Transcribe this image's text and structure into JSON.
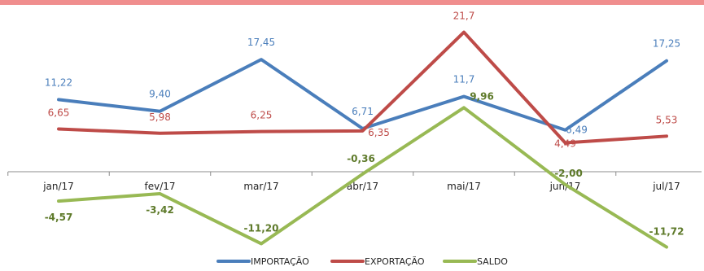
{
  "chart_data": {
    "type": "line",
    "categories": [
      "jan/17",
      "fev/17",
      "mar/17",
      "abr/17",
      "mai/17",
      "jun/17",
      "jul/17"
    ],
    "series": [
      {
        "name": "IMPORTAÇÃO",
        "color": "#4a7ebb",
        "values": [
          11.22,
          9.4,
          17.45,
          6.71,
          11.7,
          6.49,
          17.25
        ],
        "labels": [
          "11,22",
          "9,40",
          "17,45",
          "6,71",
          "11,7",
          "6,49",
          "17,25"
        ]
      },
      {
        "name": "EXPORTAÇÃO",
        "color": "#be4b48",
        "values": [
          6.65,
          5.98,
          6.25,
          6.35,
          21.7,
          4.49,
          5.53
        ],
        "labels": [
          "6,65",
          "5,98",
          "6,25",
          "6,35",
          "21,7",
          "4,49",
          "5,53"
        ]
      },
      {
        "name": "SALDO",
        "color": "#98b954",
        "label_color": "#5e7a2a",
        "values": [
          -4.57,
          -3.42,
          -11.2,
          -0.36,
          9.96,
          -2.0,
          -11.72
        ],
        "labels": [
          "-4,57",
          "-3,42",
          "-11,20",
          "-0,36",
          "9,96",
          "-2,00",
          "-11,72"
        ]
      }
    ],
    "ylim": [
      -14,
      25
    ],
    "grid": false,
    "legend_position": "bottom",
    "top_bar_color": "#f08e8e"
  }
}
